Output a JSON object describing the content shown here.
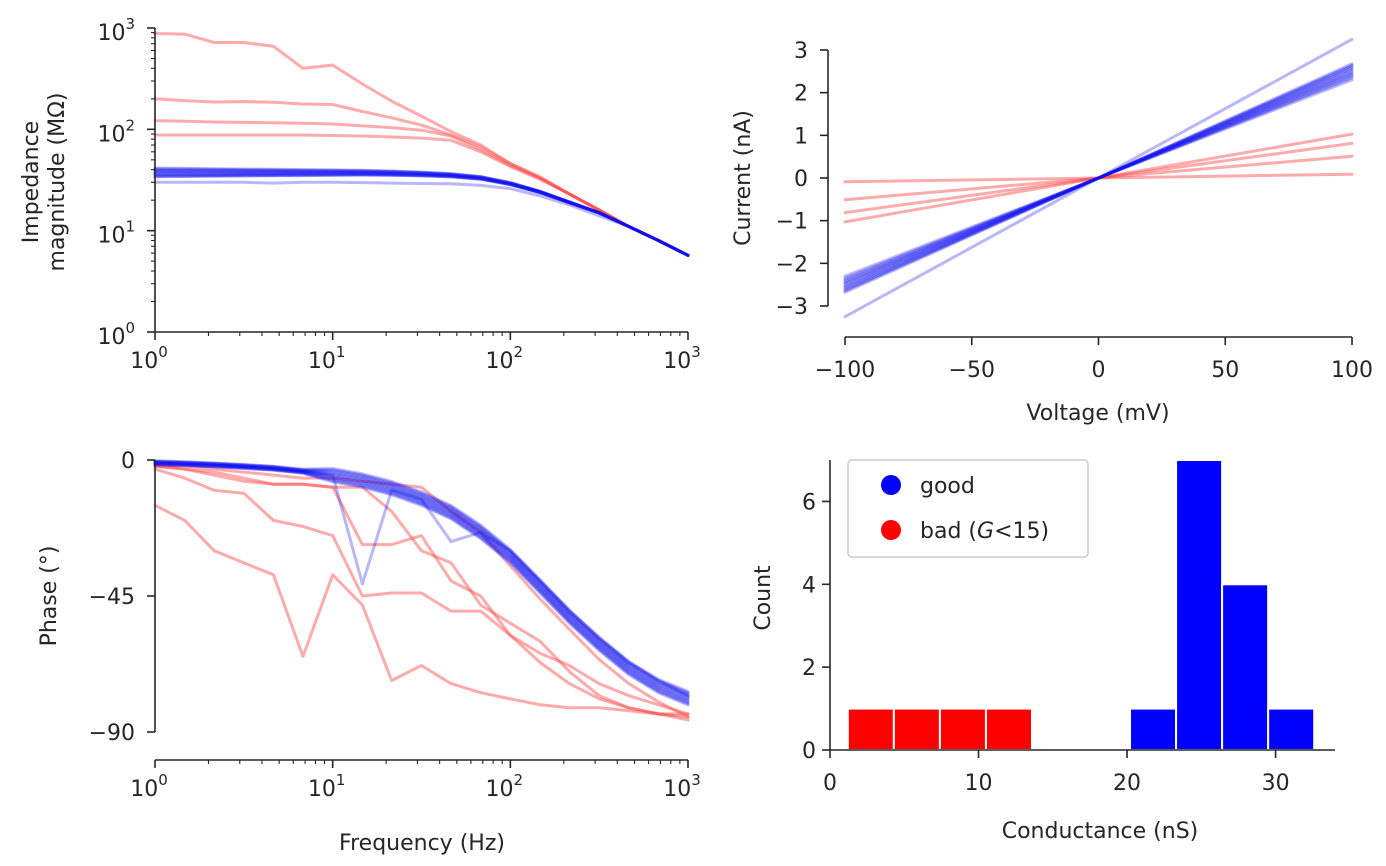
{
  "colors": {
    "good_thin": "#1010ee",
    "good_thick": "#0000ff",
    "bad": "#ff4444",
    "bad_fill": "#ff0000",
    "good_fill": "#0000ff",
    "axis": "#262626"
  },
  "chart_data": [
    {
      "id": "impedance",
      "type": "line",
      "xscale": "log",
      "yscale": "log",
      "xlim": [
        1,
        1000
      ],
      "ylim": [
        1,
        1000
      ],
      "xlabel": "",
      "ylabel_lines": [
        "Impedance",
        "magnitude (MΩ)"
      ],
      "xticks": [
        {
          "base": "10",
          "exp": "0"
        },
        {
          "base": "10",
          "exp": "1"
        },
        {
          "base": "10",
          "exp": "2"
        },
        {
          "base": "10",
          "exp": "3"
        }
      ],
      "yticks": [
        {
          "base": "10",
          "exp": "0"
        },
        {
          "base": "10",
          "exp": "1"
        },
        {
          "base": "10",
          "exp": "2"
        },
        {
          "base": "10",
          "exp": "3"
        }
      ],
      "x": [
        1,
        1.47,
        2.15,
        3.16,
        4.64,
        6.81,
        10,
        14.7,
        21.5,
        31.6,
        46.4,
        68.1,
        100,
        147,
        215,
        316,
        464,
        681,
        1000
      ],
      "bad_series": [
        {
          "name": "bad-1",
          "values": [
            880,
            870,
            720,
            720,
            660,
            400,
            430,
            280,
            190,
            135,
            95,
            70,
            46,
            34,
            23,
            16,
            11,
            8,
            5.7
          ]
        },
        {
          "name": "bad-2",
          "values": [
            200,
            192,
            186,
            188,
            185,
            178,
            176,
            150,
            130,
            110,
            88,
            67,
            46,
            33,
            23,
            16,
            11,
            8,
            5.7
          ]
        },
        {
          "name": "bad-3",
          "values": [
            122,
            120,
            118,
            117,
            116,
            115,
            113,
            108,
            104,
            98,
            86,
            63,
            44,
            33,
            23,
            16,
            11,
            8,
            5.7
          ]
        },
        {
          "name": "bad-4",
          "values": [
            88,
            88,
            88,
            88,
            88,
            88,
            87,
            86,
            84,
            82,
            78,
            60,
            43,
            32,
            23,
            16,
            11,
            8,
            5.7
          ]
        }
      ],
      "good_base": [
        37,
        37,
        37,
        37,
        37,
        37,
        37,
        37,
        36.6,
        36,
        35,
        33,
        29,
        24,
        19,
        15,
        11,
        8,
        5.7
      ],
      "good_offsets": [
        1.12,
        1.1,
        1.08,
        1.06,
        1.04,
        1.02,
        1.0,
        0.98,
        0.96,
        0.94,
        0.93,
        0.92
      ],
      "good_outlier": {
        "name": "good-outlier",
        "values": [
          30,
          30,
          30,
          30,
          29.5,
          30,
          30,
          29.8,
          29.5,
          29.2,
          29,
          28,
          26,
          22,
          18,
          14,
          11,
          8,
          5.7
        ]
      }
    },
    {
      "id": "iv",
      "type": "line",
      "xlim": [
        -100,
        100
      ],
      "ylim": [
        -3,
        3
      ],
      "xlabel": "Voltage (mV)",
      "ylabel": "Current (nA)",
      "xticks": [
        "−100",
        "−50",
        "0",
        "50",
        "100"
      ],
      "xtick_values": [
        -100,
        -50,
        0,
        50,
        100
      ],
      "yticks": [
        "−3",
        "−2",
        "−1",
        "0",
        "1",
        "2",
        "3"
      ],
      "ytick_values": [
        -3,
        -2,
        -1,
        0,
        1,
        2,
        3
      ],
      "bad_slopes": [
        0.0103,
        0.0081,
        0.0051,
        0.0009
      ],
      "good_slopes": [
        0.0268,
        0.0262,
        0.0258,
        0.0255,
        0.0252,
        0.0248,
        0.0245,
        0.0242,
        0.0238,
        0.0235,
        0.023,
        0.0264
      ],
      "good_outlier_slope": 0.0325
    },
    {
      "id": "phase",
      "type": "line",
      "xscale": "log",
      "xlim": [
        1,
        1000
      ],
      "ylim": [
        -90,
        0
      ],
      "xlabel": "Frequency (Hz)",
      "ylabel": "Phase (°)",
      "xticks": [
        {
          "base": "10",
          "exp": "0"
        },
        {
          "base": "10",
          "exp": "1"
        },
        {
          "base": "10",
          "exp": "2"
        },
        {
          "base": "10",
          "exp": "3"
        }
      ],
      "yticks": [
        "0",
        "−45",
        "−90"
      ],
      "ytick_values": [
        0,
        -45,
        -90
      ],
      "x": [
        1,
        1.47,
        2.15,
        3.16,
        4.64,
        6.81,
        10,
        14.7,
        21.5,
        31.6,
        46.4,
        68.1,
        100,
        147,
        215,
        316,
        464,
        681,
        1000
      ],
      "bad_series": [
        {
          "name": "bad-1",
          "values": [
            -15,
            -20,
            -30,
            -34,
            -38,
            -65,
            -38,
            -48,
            -73,
            -68,
            -74,
            -77,
            -79,
            -81,
            -82,
            -82,
            -83,
            -84,
            -84
          ]
        },
        {
          "name": "bad-2",
          "values": [
            -3,
            -6,
            -10,
            -11,
            -20,
            -22,
            -25,
            -45,
            -44,
            -44,
            -50,
            -50,
            -58,
            -67,
            -74,
            -79,
            -82,
            -84,
            -85
          ]
        },
        {
          "name": "bad-3",
          "values": [
            -2,
            -3,
            -5,
            -7,
            -8,
            -8,
            -9,
            -28,
            -28,
            -25,
            -40,
            -45,
            -58,
            -64,
            -68,
            -74,
            -78,
            -81,
            -84
          ]
        },
        {
          "name": "bad-4",
          "values": [
            -2,
            -3,
            -4,
            -6,
            -8,
            -8,
            -9,
            -9,
            -17,
            -30,
            -34,
            -48,
            -54,
            -60,
            -70,
            -78,
            -82,
            -84,
            -86
          ]
        },
        {
          "name": "bad-5",
          "values": [
            -2,
            -2,
            -3,
            -4,
            -5,
            -6,
            -6,
            -7,
            -8,
            -9,
            -17,
            -24,
            -35,
            -46,
            -56,
            -66,
            -74,
            -80,
            -85
          ]
        }
      ],
      "good_base": [
        -1,
        -1.3,
        -1.7,
        -2.2,
        -2.8,
        -3.8,
        -5.2,
        -7,
        -9.5,
        -13,
        -17.5,
        -24,
        -32,
        -42,
        -52,
        -61,
        -69,
        -75,
        -79
      ],
      "good_offsets": [
        2,
        1.6,
        1.2,
        0.8,
        0.4,
        0,
        -0.4,
        -0.8,
        -1.2,
        -1.6,
        -2,
        2.4
      ],
      "good_outlier": {
        "name": "good-outlier",
        "values": [
          -1,
          -1.3,
          -1.7,
          -2.2,
          -2.8,
          -3.8,
          -5,
          -41,
          -10,
          -13,
          -27,
          -24,
          -30,
          -40,
          -50,
          -59,
          -67,
          -73,
          -78
        ]
      }
    },
    {
      "id": "histogram",
      "type": "bar",
      "xlim": [
        0,
        34
      ],
      "ylim": [
        0,
        7
      ],
      "xlabel": "Conductance (nS)",
      "ylabel": "Count",
      "xticks": [
        "0",
        "10",
        "20",
        "30"
      ],
      "xtick_values": [
        0,
        10,
        20,
        30
      ],
      "yticks": [
        "0",
        "2",
        "4",
        "6"
      ],
      "ytick_values": [
        0,
        2,
        4,
        6
      ],
      "bin_width": 3.1,
      "bars": [
        {
          "start": 1.2,
          "count": 1,
          "group": "bad"
        },
        {
          "start": 4.3,
          "count": 1,
          "group": "bad"
        },
        {
          "start": 7.4,
          "count": 1,
          "group": "bad"
        },
        {
          "start": 10.5,
          "count": 1,
          "group": "bad"
        },
        {
          "start": 20.2,
          "count": 1,
          "group": "good"
        },
        {
          "start": 23.3,
          "count": 7,
          "group": "good"
        },
        {
          "start": 26.4,
          "count": 4,
          "group": "good"
        },
        {
          "start": 29.5,
          "count": 1,
          "group": "good"
        }
      ],
      "legend": {
        "position": "top-left",
        "entries": [
          {
            "label": "good",
            "group": "good"
          },
          {
            "label_pre": "bad (",
            "label_italic": "G",
            "label_post": "<15)",
            "group": "bad"
          }
        ]
      }
    }
  ]
}
